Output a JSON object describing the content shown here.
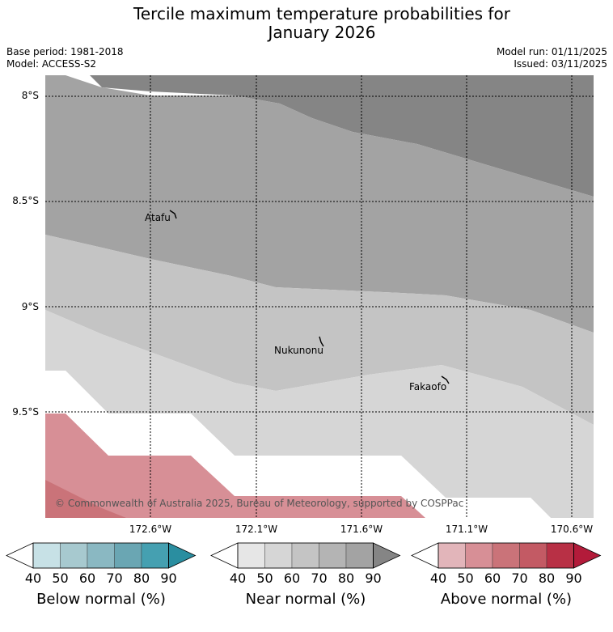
{
  "title_line1": "Tercile maximum temperature probabilities for",
  "title_line2": "January 2026",
  "base_period": "Base period: 1981-2018",
  "model": "Model: ACCESS-S2",
  "model_run": "Model run: 01/11/2025",
  "issued": "Issued: 03/11/2025",
  "copyright": "© Commonwealth of Australia 2025, Bureau of Meteorology, supported by COSPPac",
  "lat_labels": [
    "8°S",
    "8.5°S",
    "9°S",
    "9.5°S"
  ],
  "lon_labels": [
    "172.6°W",
    "172.1°W",
    "171.6°W",
    "171.1°W",
    "170.6°W"
  ],
  "places": [
    "Atafu",
    "Nukunonu",
    "Fakaofo"
  ],
  "colorbars": [
    {
      "title": "Below normal (%)",
      "ticks": [
        "40",
        "50",
        "60",
        "70",
        "80",
        "90"
      ],
      "colors": [
        "#c7e1e6",
        "#a7c9cf",
        "#8ab8c2",
        "#6aa6b3",
        "#45a0b1",
        "#2a8ea0"
      ]
    },
    {
      "title": "Near normal (%)",
      "ticks": [
        "40",
        "50",
        "60",
        "70",
        "80",
        "90"
      ],
      "colors": [
        "#e6e6e6",
        "#d6d6d6",
        "#c4c4c4",
        "#b4b4b4",
        "#a3a3a3",
        "#858585"
      ]
    },
    {
      "title": "Above normal (%)",
      "ticks": [
        "40",
        "50",
        "60",
        "70",
        "80",
        "90"
      ],
      "colors": [
        "#e2b5ba",
        "#d78f96",
        "#ca7379",
        "#c35a64",
        "#b83045",
        "#b31b3a"
      ]
    }
  ]
}
